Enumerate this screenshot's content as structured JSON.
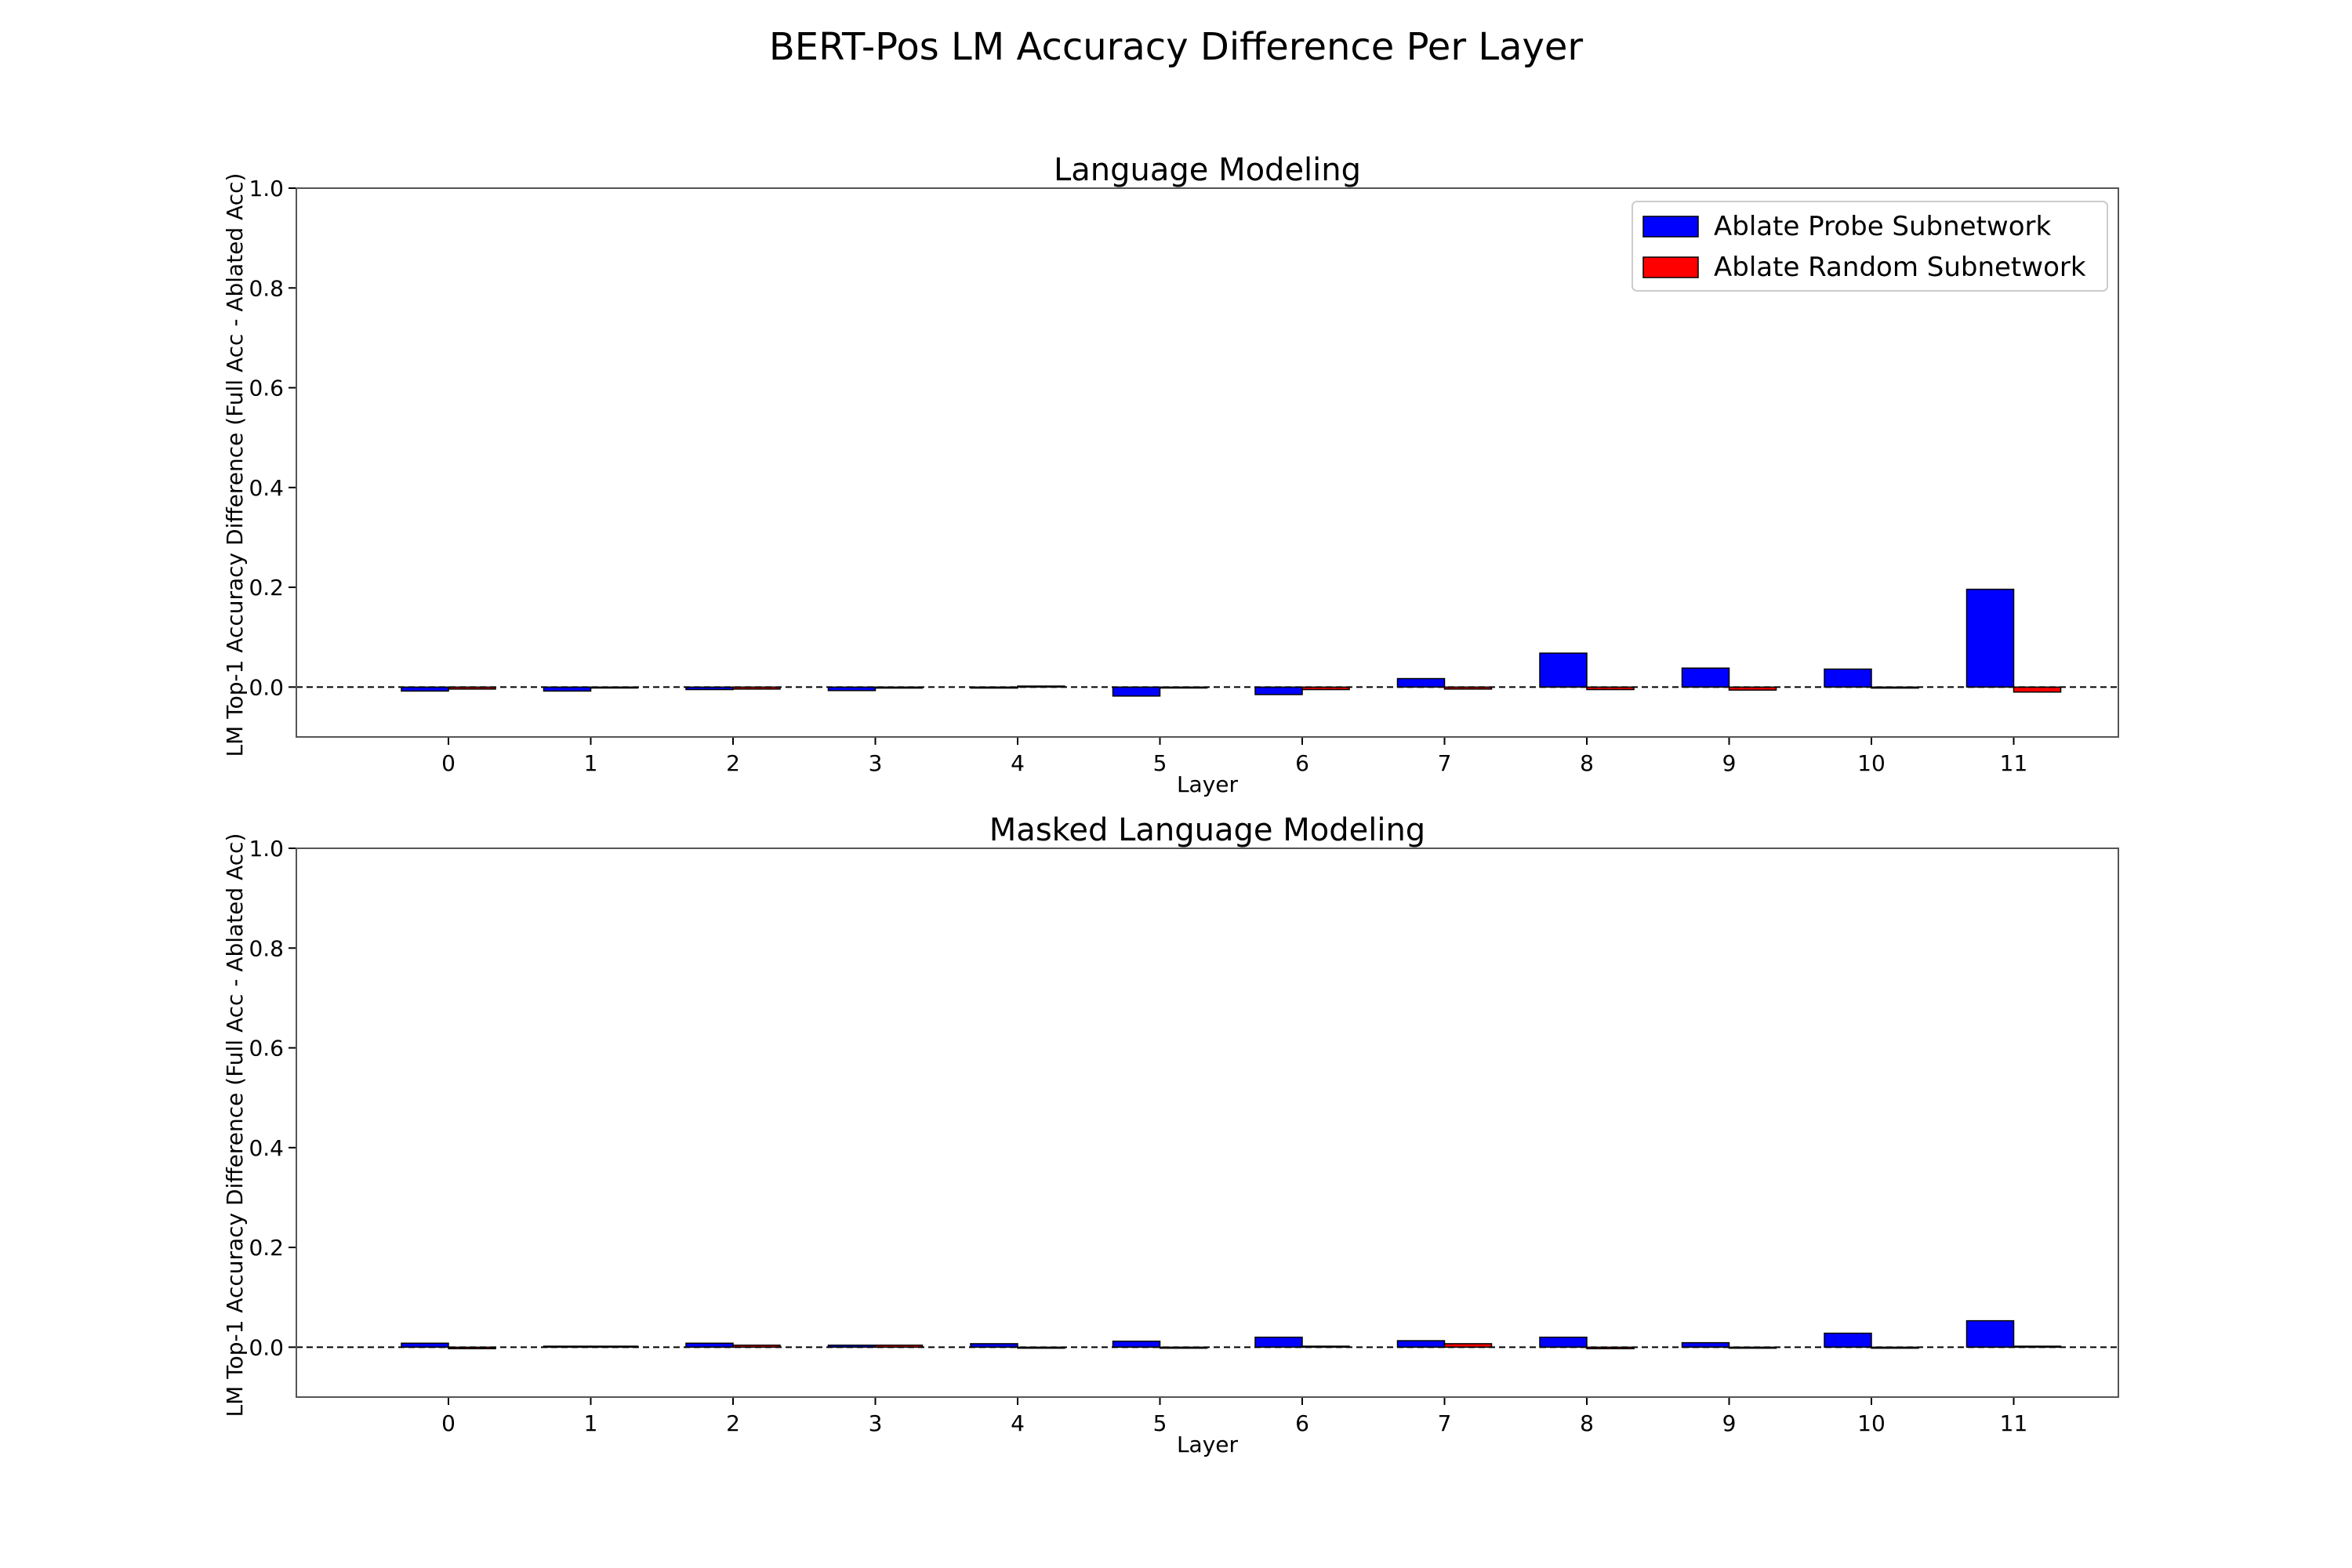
{
  "figure": {
    "title": "BERT-Pos LM Accuracy Difference Per Layer"
  },
  "chart_data": [
    {
      "type": "bar",
      "title": "Language Modeling",
      "xlabel": "Layer",
      "ylabel": "LM Top-1 Accuracy Difference (Full Acc - Ablated Acc)",
      "ylim": [
        -0.1,
        1.0
      ],
      "yticks": [
        "0.0",
        "0.2",
        "0.4",
        "0.6",
        "0.8",
        "1.0"
      ],
      "ytick_values": [
        0.0,
        0.2,
        0.4,
        0.6,
        0.8,
        1.0
      ],
      "categories": [
        "0",
        "1",
        "2",
        "3",
        "4",
        "5",
        "6",
        "7",
        "8",
        "9",
        "10",
        "11"
      ],
      "grid": false,
      "zero_line": "dashed",
      "legend": {
        "placement": "top-right",
        "entries": [
          "Ablate Probe Subnetwork",
          "Ablate Random Subnetwork"
        ]
      },
      "series": [
        {
          "name": "Ablate Probe Subnetwork",
          "color": "#0000ff",
          "values": [
            -0.008,
            -0.008,
            -0.005,
            -0.007,
            -0.002,
            -0.018,
            -0.015,
            0.017,
            0.068,
            0.038,
            0.036,
            0.196
          ]
        },
        {
          "name": "Ablate Random Subnetwork",
          "color": "#ff0000",
          "values": [
            -0.004,
            -0.001,
            -0.004,
            -0.002,
            0.002,
            -0.001,
            -0.005,
            -0.004,
            -0.005,
            -0.006,
            -0.002,
            -0.01
          ]
        }
      ]
    },
    {
      "type": "bar",
      "title": "Masked Language Modeling",
      "xlabel": "Layer",
      "ylabel": "LM Top-1 Accuracy Difference (Full Acc - Ablated Acc)",
      "ylim": [
        -0.1,
        1.0
      ],
      "yticks": [
        "0.0",
        "0.2",
        "0.4",
        "0.6",
        "0.8",
        "1.0"
      ],
      "ytick_values": [
        0.0,
        0.2,
        0.4,
        0.6,
        0.8,
        1.0
      ],
      "categories": [
        "0",
        "1",
        "2",
        "3",
        "4",
        "5",
        "6",
        "7",
        "8",
        "9",
        "10",
        "11"
      ],
      "grid": false,
      "zero_line": "dashed",
      "series": [
        {
          "name": "Ablate Probe Subnetwork",
          "color": "#0000ff",
          "values": [
            0.008,
            0.002,
            0.008,
            0.004,
            0.007,
            0.012,
            0.02,
            0.013,
            0.02,
            0.009,
            0.028,
            0.053
          ]
        },
        {
          "name": "Ablate Random Subnetwork",
          "color": "#ff0000",
          "values": [
            -0.003,
            0.002,
            0.004,
            0.004,
            -0.002,
            -0.002,
            0.002,
            0.007,
            -0.003,
            -0.002,
            -0.002,
            0.002
          ]
        }
      ]
    }
  ]
}
